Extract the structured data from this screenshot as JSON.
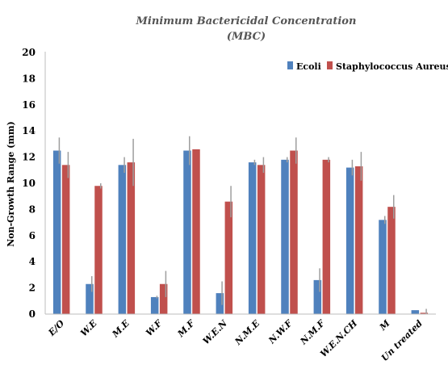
{
  "chart_data": {
    "type": "bar",
    "title": "Minimum Bactericidal Concentration",
    "subtitle": "(MBC)",
    "xlabel": "",
    "ylabel": "Non-Growth Range (mm)",
    "ylim": [
      0,
      20
    ],
    "yticks": [
      0,
      2,
      4,
      6,
      8,
      10,
      12,
      14,
      16,
      18,
      20
    ],
    "grid": false,
    "legend_position": "top-right",
    "categories": [
      "E/O",
      "W.E",
      "M.E",
      "W.F",
      "M.F",
      "W.E.N",
      "N.M.E",
      "N.W.F",
      "N.M.F",
      "W.E.N.CH",
      "M",
      "Un treated"
    ],
    "series": [
      {
        "name": "Ecoli",
        "color": "#4f81bd",
        "values": [
          12.5,
          2.3,
          11.4,
          1.3,
          12.5,
          1.6,
          11.6,
          11.8,
          2.6,
          11.2,
          7.2,
          0.3
        ],
        "errors": [
          1.0,
          0.6,
          0.6,
          0.1,
          1.1,
          0.9,
          0.2,
          0.2,
          0.9,
          0.6,
          0.3,
          0.0
        ]
      },
      {
        "name": "Staphylococcus Aureus",
        "color": "#c0504d",
        "values": [
          11.4,
          9.8,
          11.6,
          2.3,
          12.6,
          8.6,
          11.4,
          12.5,
          11.8,
          11.3,
          8.2,
          0.1
        ],
        "errors": [
          1.0,
          0.2,
          1.8,
          1.0,
          0.0,
          1.2,
          0.6,
          1.0,
          0.2,
          1.1,
          0.9,
          0.3
        ]
      }
    ]
  }
}
